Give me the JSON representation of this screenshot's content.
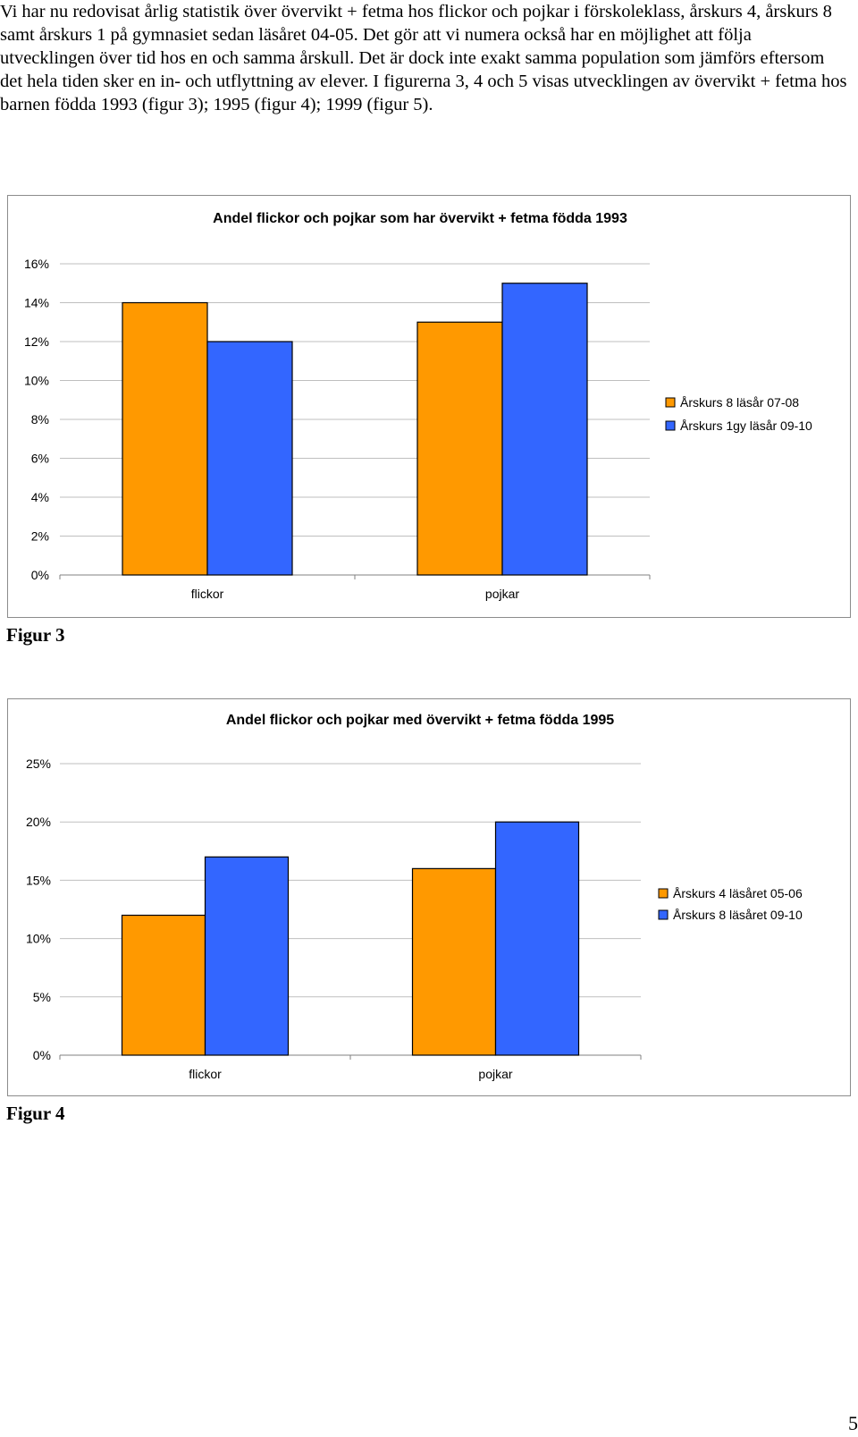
{
  "document": {
    "intro_text": "Vi har nu redovisat årlig statistik över övervikt + fetma hos flickor och pojkar i förskoleklass, årskurs 4, årskurs 8 samt årskurs 1 på gymnasiet sedan läsåret 04-05. Det gör att vi numera också har en möjlighet att följa utvecklingen över tid hos en och samma årskull. Det är dock inte exakt samma population som jämförs eftersom det hela tiden sker en in- och utflyttning av elever. I figurerna 3, 4 och 5 visas utvecklingen av övervikt + fetma hos barnen födda 1993 (figur 3); 1995 (figur 4); 1999 (figur 5).",
    "page_number": "5"
  },
  "figures": [
    {
      "label": "Figur 3"
    },
    {
      "label": "Figur 4"
    }
  ],
  "colors": {
    "series1": "#ff9900",
    "series2": "#3366ff",
    "bar_outline": "#000000",
    "grid": "#bfbfbf"
  },
  "chart_data": [
    {
      "type": "bar",
      "title": "Andel flickor och pojkar som har övervikt + fetma födda 1993",
      "categories": [
        "flickor",
        "pojkar"
      ],
      "series": [
        {
          "name": "Årskurs 8 läsår 07-08",
          "values": [
            14,
            13
          ]
        },
        {
          "name": "Årskurs 1gy läsår 09-10",
          "values": [
            12,
            15
          ]
        }
      ],
      "ylim": [
        0,
        16
      ],
      "yticks": [
        0,
        2,
        4,
        6,
        8,
        10,
        12,
        14,
        16
      ],
      "ytick_labels": [
        "0%",
        "2%",
        "4%",
        "6%",
        "8%",
        "10%",
        "12%",
        "14%",
        "16%"
      ],
      "xlabel": "",
      "ylabel": "",
      "grid": true,
      "legend_position": "right"
    },
    {
      "type": "bar",
      "title": "Andel flickor och pojkar med övervikt + fetma födda 1995",
      "categories": [
        "flickor",
        "pojkar"
      ],
      "series": [
        {
          "name": "Årskurs 4 läsåret 05-06",
          "values": [
            12,
            16
          ]
        },
        {
          "name": "Årskurs 8 läsåret 09-10",
          "values": [
            17,
            20
          ]
        }
      ],
      "ylim": [
        0,
        25
      ],
      "yticks": [
        0,
        5,
        10,
        15,
        20,
        25
      ],
      "ytick_labels": [
        "0%",
        "5%",
        "10%",
        "15%",
        "20%",
        "25%"
      ],
      "xlabel": "",
      "ylabel": "",
      "grid": true,
      "legend_position": "right"
    }
  ]
}
